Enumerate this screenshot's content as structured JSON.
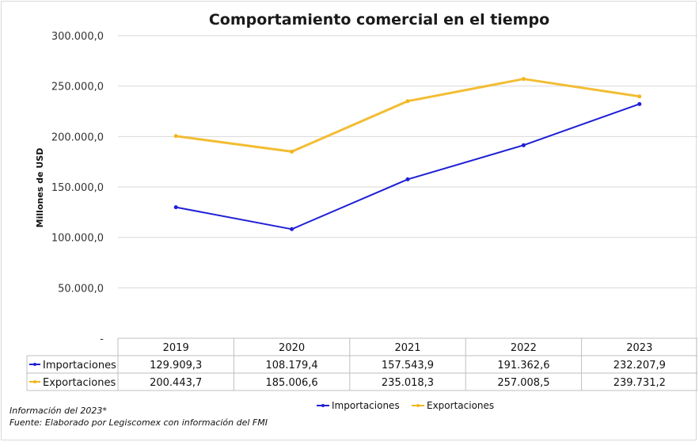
{
  "chart_data": {
    "type": "line",
    "title": "Comportamiento comercial en el tiempo",
    "ylabel": "Millones de USD",
    "xlabel": "",
    "categories": [
      "2019",
      "2020",
      "2021",
      "2022",
      "2023"
    ],
    "ylim": [
      0,
      300000
    ],
    "yticks": [
      0,
      50000,
      100000,
      150000,
      200000,
      250000,
      300000
    ],
    "ytick_labels": [
      "-",
      "50.000,0",
      "100.000,0",
      "150.000,0",
      "200.000,0",
      "250.000,0",
      "300.000,0"
    ],
    "grid": true,
    "legend_position": "bottom",
    "series": [
      {
        "name": "Importaciones",
        "color": "#1f1fd6",
        "values": [
          129909.3,
          108179.4,
          157543.9,
          191362.6,
          232207.9
        ],
        "labels": [
          "129.909,3",
          "108.179,4",
          "157.543,9",
          "191.362,6",
          "232.207,9"
        ]
      },
      {
        "name": "Exportaciones",
        "color": "#f2b61e",
        "values": [
          200443.7,
          185006.6,
          235018.3,
          257008.5,
          239731.2
        ],
        "labels": [
          "200.443,7",
          "185.006,6",
          "235.018,3",
          "257.008,5",
          "239.731,2"
        ]
      }
    ]
  },
  "notes": {
    "info": "Información del 2023*",
    "source": "Fuente: Elaborado por Legiscomex con información del FMI"
  }
}
